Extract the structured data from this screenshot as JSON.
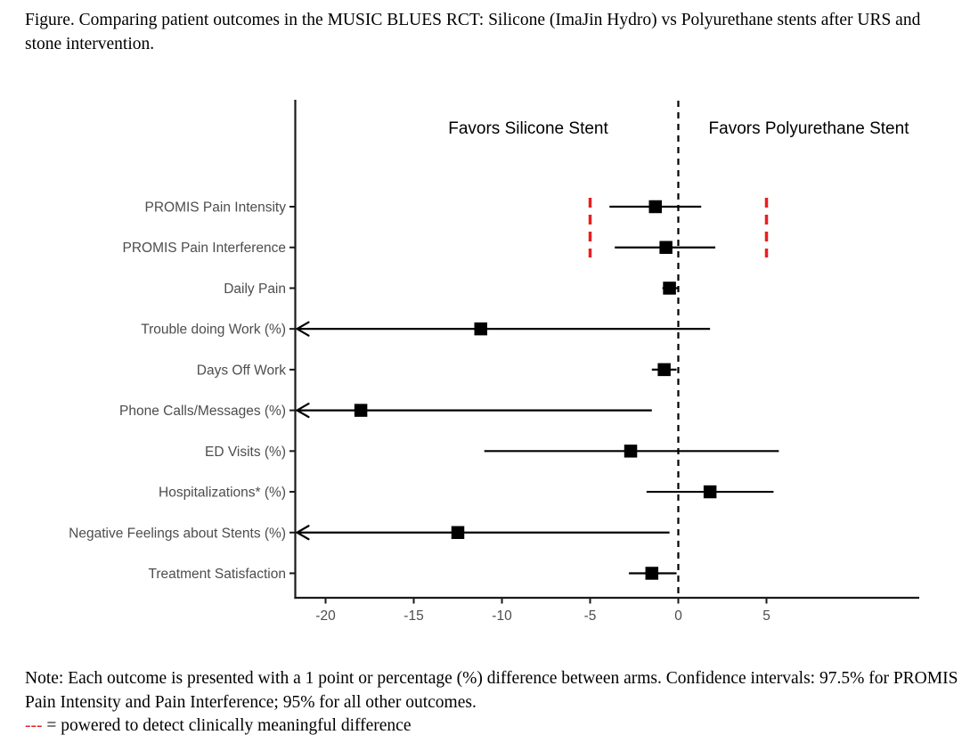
{
  "figure_caption": "Figure. Comparing patient outcomes in the MUSIC BLUES RCT: Silicone (ImaJin Hydro) vs Polyurethane stents after URS and stone intervention.",
  "note": {
    "text": "Note: Each outcome is presented with a 1 point or percentage (%) difference between arms. Confidence intervals: 97.5% for PROMIS Pain Intensity and Pain Interference; 95% for all other outcomes.",
    "legend_dash": "---",
    "legend_text": " = powered to detect clinically meaningful difference"
  },
  "chart_data": {
    "type": "scatter",
    "subtype": "forest-plot",
    "title": "",
    "xlabel": "",
    "ylabel": "",
    "favors_left_label": "Favors Silicone Stent",
    "favors_right_label": "Favors Polyurethane Stent",
    "xlim": [
      -21.7,
      13.7
    ],
    "x_ticks": [
      -20,
      -15,
      -10,
      -5,
      0,
      5
    ],
    "zero_reference_line": 0,
    "grid": false,
    "powered_markers": [
      -5,
      5
    ],
    "powered_markers_note": "red dashed verticals spanning the two PROMIS rows = powered to detect clinically meaningful difference",
    "rows": [
      {
        "label": "PROMIS Pain Intensity",
        "estimate": -1.3,
        "ci_low": -3.9,
        "ci_high": 1.3,
        "clipped_low": false
      },
      {
        "label": "PROMIS Pain Interference",
        "estimate": -0.7,
        "ci_low": -3.6,
        "ci_high": 2.1,
        "clipped_low": false
      },
      {
        "label": "Daily Pain",
        "estimate": -0.5,
        "ci_low": -0.9,
        "ci_high": 0.0,
        "clipped_low": false
      },
      {
        "label": "Trouble doing Work (%)",
        "estimate": -11.2,
        "ci_low": -21.7,
        "ci_high": 1.8,
        "clipped_low": true
      },
      {
        "label": "Days Off Work",
        "estimate": -0.8,
        "ci_low": -1.5,
        "ci_high": -0.1,
        "clipped_low": false
      },
      {
        "label": "Phone Calls/Messages (%)",
        "estimate": -18.0,
        "ci_low": -21.7,
        "ci_high": -1.5,
        "clipped_low": true
      },
      {
        "label": "ED Visits (%)",
        "estimate": -2.7,
        "ci_low": -11.0,
        "ci_high": 5.7,
        "clipped_low": false
      },
      {
        "label": "Hospitalizations* (%)",
        "estimate": 1.8,
        "ci_low": -1.8,
        "ci_high": 5.4,
        "clipped_low": false
      },
      {
        "label": "Negative Feelings about Stents (%)",
        "estimate": -12.5,
        "ci_low": -21.7,
        "ci_high": -0.5,
        "clipped_low": true
      },
      {
        "label": "Treatment Satisfaction",
        "estimate": -1.5,
        "ci_low": -2.8,
        "ci_high": -0.1,
        "clipped_low": false
      }
    ],
    "colors": {
      "marker": "#000000",
      "ci_line": "#000000",
      "powered_line": "#e82020",
      "axis_line": "#1a1a1a",
      "axis_text": "#4d4d4d",
      "header_text": "#000000"
    }
  }
}
